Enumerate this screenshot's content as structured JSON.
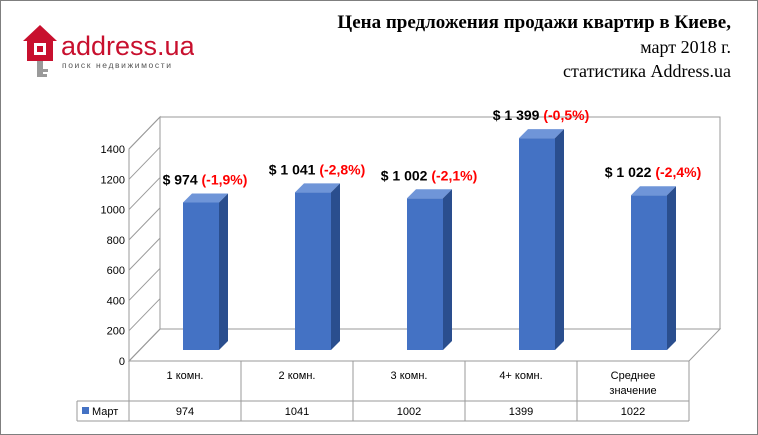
{
  "logo": {
    "brand": "address.ua",
    "tagline": "поиск недвижимости"
  },
  "header": {
    "title_line1": "Цена предложения продажи квартир в Киеве,",
    "title_line2": "март 2018 г.",
    "title_line3": "статистика Address.ua"
  },
  "chart_data": {
    "type": "bar",
    "categories": [
      "1 комн.",
      "2 комн.",
      "3 комн.",
      "4+ комн.",
      "Среднее значение"
    ],
    "series": [
      {
        "name": "Март",
        "values": [
          974,
          1041,
          1002,
          1399,
          1022
        ],
        "color": "#4472c4"
      }
    ],
    "data_labels": [
      {
        "price": "$ 974",
        "change": "(-1,9%)"
      },
      {
        "price": "$ 1 041",
        "change": "(-2,8%)"
      },
      {
        "price": "$ 1 002",
        "change": "(-2,1%)"
      },
      {
        "price": "$ 1 399",
        "change": "(-0,5%)"
      },
      {
        "price": "$ 1 022",
        "change": "(-2,4%)"
      }
    ],
    "yticks": [
      0,
      200,
      400,
      600,
      800,
      1000,
      1200,
      1400
    ],
    "ylim": [
      0,
      1400
    ],
    "grid": false,
    "legend": "data-table",
    "label_colors": {
      "price": "#000000",
      "change": "#ff0000"
    }
  }
}
